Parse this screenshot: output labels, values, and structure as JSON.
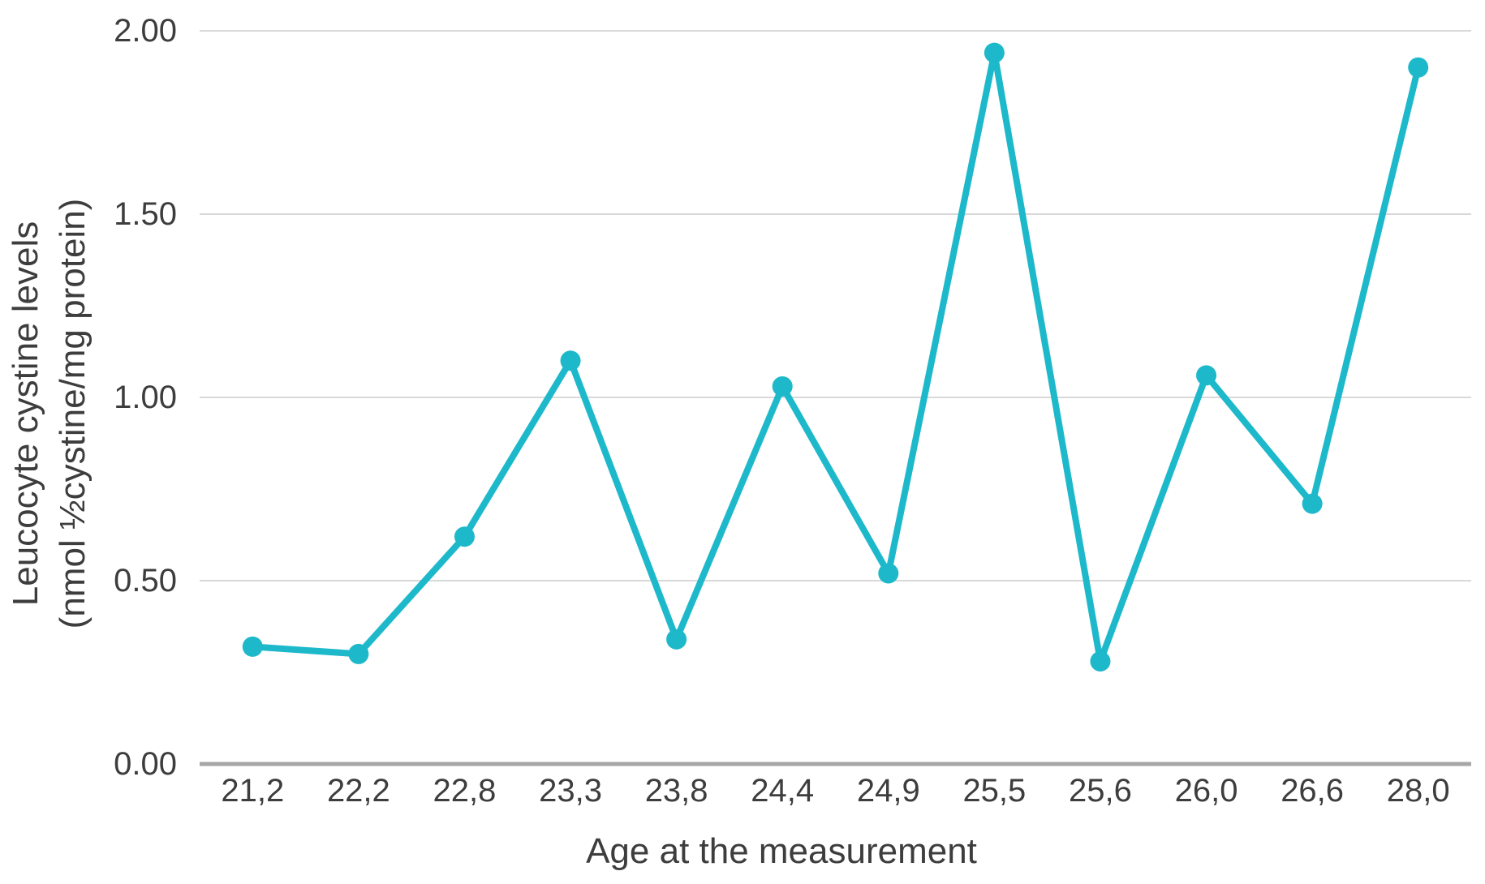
{
  "chart_data": {
    "type": "line",
    "title": "",
    "categories": [
      "21,2",
      "22,2",
      "22,8",
      "23,3",
      "23,8",
      "24,4",
      "24,9",
      "25,5",
      "25,6",
      "26,0",
      "26,6",
      "28,0"
    ],
    "values": [
      0.32,
      0.3,
      0.62,
      1.1,
      0.34,
      1.03,
      0.52,
      1.94,
      0.28,
      1.06,
      0.71,
      1.9
    ],
    "series": [
      {
        "name": "Leucocyte cystine levels",
        "values": [
          0.32,
          0.3,
          0.62,
          1.1,
          0.34,
          1.03,
          0.52,
          1.94,
          0.28,
          1.06,
          0.71,
          1.9
        ]
      }
    ],
    "xlabel": "Age at the measurement",
    "ylabel": "Leucocyte cystine levels\n(nmol ½cystine/mg protein)",
    "y_ticks": [
      {
        "value": 0.0,
        "label": "0.00"
      },
      {
        "value": 0.5,
        "label": "0.50"
      },
      {
        "value": 1.0,
        "label": "1.00"
      },
      {
        "value": 1.5,
        "label": "1.50"
      },
      {
        "value": 2.0,
        "label": "2.00"
      }
    ],
    "ylim": [
      0,
      2
    ],
    "grid": "horizontal",
    "legend_position": "none",
    "marker": "circle",
    "colors": {
      "line": "#1db9cb",
      "marker": "#1db9cb",
      "gridline": "#d9d9d9",
      "axis_line": "#a6a6a6",
      "text": "#3d3d3d",
      "background": "#ffffff"
    }
  }
}
